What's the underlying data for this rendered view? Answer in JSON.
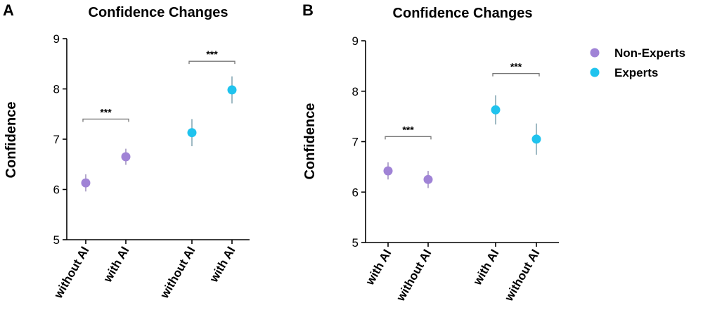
{
  "colors": {
    "non_experts": "#a083d6",
    "experts": "#1fc3ee",
    "error_non_experts": "#8c7bb0",
    "error_experts": "#6b95a5"
  },
  "legend": [
    {
      "label": "Non-Experts",
      "color_key": "non_experts"
    },
    {
      "label": "Experts",
      "color_key": "experts"
    }
  ],
  "chart_data": [
    {
      "panel": "A",
      "type": "scatter",
      "title": "Confidence Changes",
      "ylabel": "Confidence",
      "ylim": [
        5,
        9
      ],
      "yticks": [
        "5",
        "6",
        "7",
        "8",
        "9"
      ],
      "grid": false,
      "categories": [
        "without AI",
        "with AI",
        "without AI",
        "with AI"
      ],
      "points": [
        {
          "category": "without AI",
          "group": "non_experts",
          "y": 6.13,
          "err": 0.17
        },
        {
          "category": "with AI",
          "group": "non_experts",
          "y": 6.65,
          "err": 0.16
        },
        {
          "category": "without AI",
          "group": "experts",
          "y": 7.13,
          "err": 0.27
        },
        {
          "category": "with AI",
          "group": "experts",
          "y": 7.98,
          "err": 0.27
        }
      ],
      "annotations": [
        {
          "text": "***",
          "from": 0,
          "to": 1,
          "y": 7.4
        },
        {
          "text": "***",
          "from": 2,
          "to": 3,
          "y": 8.55
        }
      ]
    },
    {
      "panel": "B",
      "type": "scatter",
      "title": "Confidence Changes",
      "ylabel": "Confidence",
      "ylim": [
        5,
        9
      ],
      "yticks": [
        "5",
        "6",
        "7",
        "8",
        "9"
      ],
      "grid": false,
      "categories": [
        "with AI",
        "without AI",
        "with AI",
        "without AI"
      ],
      "points": [
        {
          "category": "with AI",
          "group": "non_experts",
          "y": 6.42,
          "err": 0.17
        },
        {
          "category": "without AI",
          "group": "non_experts",
          "y": 6.25,
          "err": 0.17
        },
        {
          "category": "with AI",
          "group": "experts",
          "y": 7.63,
          "err": 0.29
        },
        {
          "category": "without AI",
          "group": "experts",
          "y": 7.05,
          "err": 0.31
        }
      ],
      "annotations": [
        {
          "text": "***",
          "from": 0,
          "to": 1,
          "y": 7.1
        },
        {
          "text": "***",
          "from": 2,
          "to": 3,
          "y": 8.35
        }
      ]
    }
  ]
}
